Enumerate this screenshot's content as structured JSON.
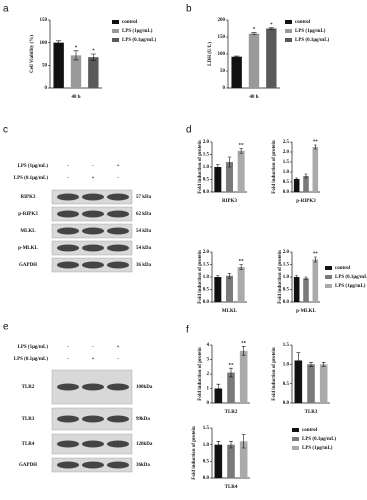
{
  "panel_labels": [
    "a",
    "b",
    "c",
    "d",
    "e",
    "f"
  ],
  "chart_data": [
    {
      "type": "bar",
      "ylabel": "Cell Viability (%)",
      "xlabel": "48 h",
      "categories": [
        "control",
        "LPS (1μg/mL)",
        "LPS (0.1μg/mL)"
      ],
      "values": [
        100,
        72,
        68
      ],
      "errors": [
        4,
        10,
        7
      ],
      "annotations": [
        null,
        "*",
        "*"
      ],
      "colors": [
        "#111111",
        "#9a9a9a",
        "#5a5a5a"
      ],
      "ylim": [
        0,
        150
      ],
      "yticks": [
        0,
        50,
        100,
        150
      ],
      "legend": "right"
    },
    {
      "type": "bar",
      "ylabel": "LDH (U/L)",
      "xlabel": "48 h",
      "categories": [
        "control",
        "LPS (1μg/mL)",
        "LPS (0.1μg/mL)"
      ],
      "values": [
        92,
        160,
        175
      ],
      "errors": [
        2,
        3,
        2
      ],
      "annotations": [
        null,
        "*",
        "*"
      ],
      "colors": [
        "#111111",
        "#9a9a9a",
        "#5a5a5a"
      ],
      "ylim": [
        0,
        200
      ],
      "yticks": [
        0,
        50,
        100,
        150,
        200
      ],
      "legend": "right"
    },
    {
      "type": "bar",
      "ylabel": "Fold induction of protein",
      "xlabel": "RIPK3",
      "categories": [
        "control",
        "LPS (0.1μg/mL)",
        "LPS (1μg/mL)"
      ],
      "values": [
        1.0,
        1.2,
        1.65
      ],
      "errors": [
        0.1,
        0.2,
        0.1
      ],
      "annotations": [
        null,
        null,
        "**"
      ],
      "colors": [
        "#111111",
        "#7a7a7a",
        "#aaaaaa"
      ],
      "ylim": [
        0,
        2
      ],
      "yticks": [
        {
          "value": 0,
          "label": "0.0"
        },
        0.5,
        {
          "value": 1,
          "label": "1.0"
        },
        1.5,
        {
          "value": 2,
          "label": "2.0"
        }
      ]
    },
    {
      "type": "bar",
      "ylabel": "Fold induction of protein",
      "xlabel": "p-RIPK3",
      "categories": [
        "control",
        "LPS (0.1μg/mL)",
        "LPS (1μg/mL)"
      ],
      "values": [
        0.65,
        0.8,
        2.25
      ],
      "errors": [
        0.05,
        0.1,
        0.1
      ],
      "annotations": [
        null,
        null,
        "**"
      ],
      "colors": [
        "#111111",
        "#7a7a7a",
        "#aaaaaa"
      ],
      "ylim": [
        0,
        2.5
      ],
      "yticks": [
        {
          "value": 0,
          "label": "0.0"
        },
        0.5,
        {
          "value": 1,
          "label": "1.0"
        },
        1.5,
        {
          "value": 2,
          "label": "2.0"
        },
        2.5
      ]
    },
    {
      "type": "bar",
      "ylabel": "Fold induction of protein",
      "xlabel": "MLKL",
      "categories": [
        "control",
        "LPS (0.1μg/mL)",
        "LPS (1μg/mL)"
      ],
      "values": [
        1.0,
        1.05,
        1.4
      ],
      "errors": [
        0.05,
        0.1,
        0.1
      ],
      "annotations": [
        null,
        null,
        "**"
      ],
      "colors": [
        "#111111",
        "#7a7a7a",
        "#aaaaaa"
      ],
      "ylim": [
        0,
        2
      ],
      "yticks": [
        {
          "value": 0,
          "label": "0.0"
        },
        0.5,
        {
          "value": 1,
          "label": "1.0"
        },
        1.5,
        {
          "value": 2,
          "label": "2.0"
        }
      ]
    },
    {
      "type": "bar",
      "ylabel": "Fold induction of protein",
      "xlabel": "p-MLKL",
      "categories": [
        "control",
        "LPS (0.1μg/mL)",
        "LPS (1μg/mL)"
      ],
      "values": [
        1.0,
        0.95,
        1.7
      ],
      "errors": [
        0.05,
        0.05,
        0.1
      ],
      "annotations": [
        null,
        null,
        "**"
      ],
      "colors": [
        "#111111",
        "#7a7a7a",
        "#aaaaaa"
      ],
      "ylim": [
        0,
        2
      ],
      "yticks": [
        {
          "value": 0,
          "label": "0.0"
        },
        0.5,
        {
          "value": 1,
          "label": "1.0"
        },
        1.5,
        {
          "value": 2,
          "label": "2.0"
        }
      ],
      "legend": "right"
    },
    {
      "type": "bar",
      "ylabel": "Fold induction of protein",
      "xlabel": "TLR2",
      "categories": [
        "control",
        "LPS (0.1μg/mL)",
        "LPS (1μg/mL)"
      ],
      "values": [
        1.0,
        2.1,
        3.6
      ],
      "errors": [
        0.3,
        0.3,
        0.3
      ],
      "annotations": [
        null,
        "**",
        "**"
      ],
      "colors": [
        "#111111",
        "#7a7a7a",
        "#aaaaaa"
      ],
      "ylim": [
        0,
        4
      ],
      "yticks": [
        0,
        1,
        2,
        3,
        4
      ]
    },
    {
      "type": "bar",
      "ylabel": "Fold induction of protein",
      "xlabel": "TLR3",
      "categories": [
        "control",
        "LPS (0.1μg/mL)",
        "LPS (1μg/mL)"
      ],
      "values": [
        1.1,
        1.0,
        1.0
      ],
      "errors": [
        0.2,
        0.05,
        0.05
      ],
      "annotations": [
        null,
        null,
        null
      ],
      "colors": [
        "#111111",
        "#7a7a7a",
        "#aaaaaa"
      ],
      "ylim": [
        0,
        1.5
      ],
      "yticks": [
        {
          "value": 0,
          "label": "0.0"
        },
        0.5,
        {
          "value": 1,
          "label": "1.0"
        },
        1.5
      ]
    },
    {
      "type": "bar",
      "ylabel": "Fold induction of protein",
      "xlabel": "TLR4",
      "categories": [
        "control",
        "LPS (0.1μg/mL)",
        "LPS (1μg/mL)"
      ],
      "values": [
        1.0,
        1.0,
        1.1
      ],
      "errors": [
        0.1,
        0.1,
        0.2
      ],
      "annotations": [
        null,
        null,
        null
      ],
      "colors": [
        "#111111",
        "#7a7a7a",
        "#aaaaaa"
      ],
      "ylim": [
        0,
        1.5
      ],
      "yticks": [
        {
          "value": 0,
          "label": "0.0"
        },
        0.5,
        {
          "value": 1,
          "label": "1.0"
        },
        1.5
      ],
      "legend": "right"
    }
  ],
  "blots": [
    {
      "conditions": [
        {
          "name": "LPS (1μg/mL)",
          "signs": [
            "-",
            "-",
            "+"
          ]
        },
        {
          "name": "LPS (0.1μg/mL)",
          "signs": [
            "-",
            "+",
            "-"
          ]
        }
      ],
      "bands": [
        {
          "name": "RIPK3",
          "size": "57 kDa"
        },
        {
          "name": "p-RIPK3",
          "size": "62 kDa"
        },
        {
          "name": "MLKL",
          "size": "54 kDa"
        },
        {
          "name": "p-MLKL",
          "size": "54 kDa"
        },
        {
          "name": "GAPDH",
          "size": "36 kDa"
        }
      ]
    },
    {
      "conditions": [
        {
          "name": "LPS (1μg/mL)",
          "signs": [
            "-",
            "-",
            "+"
          ]
        },
        {
          "name": "LPS (0.1μg/mL)",
          "signs": [
            "-",
            "+",
            "-"
          ]
        }
      ],
      "bands": [
        {
          "name": "TLR2",
          "size": "100kDa"
        },
        {
          "name": "TLR3",
          "size": "99kDa"
        },
        {
          "name": "TLR4",
          "size": "120kDa"
        },
        {
          "name": "GAPDH",
          "size": "36kDa"
        }
      ]
    }
  ]
}
